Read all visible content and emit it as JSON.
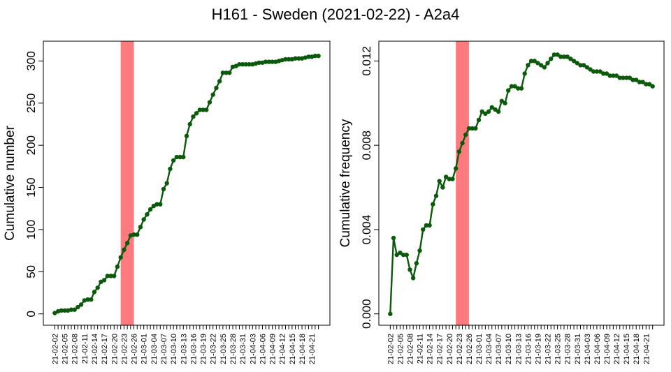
{
  "title": "H161 - Sweden (2021-02-22) - A2a4",
  "colors": {
    "series": "#0b5a0b",
    "highlight": "#ff7a7e",
    "axis": "#000000"
  },
  "chart_data": [
    {
      "type": "line",
      "ylabel": "Cumulative number",
      "xlabel": "",
      "ylim": [
        0,
        310
      ],
      "yticks": [
        "0",
        "50",
        "100",
        "150",
        "200",
        "250",
        "300"
      ],
      "ytick_values": [
        0,
        50,
        100,
        150,
        200,
        250,
        300
      ],
      "highlight": {
        "from": "2021-02-22",
        "to": "2021-02-26"
      },
      "grid": false,
      "legend": "none",
      "x": [
        "2021-02-02",
        "2021-02-03",
        "2021-02-04",
        "2021-02-05",
        "2021-02-06",
        "2021-02-07",
        "2021-02-08",
        "2021-02-09",
        "2021-02-10",
        "2021-02-11",
        "2021-02-12",
        "2021-02-13",
        "2021-02-14",
        "2021-02-15",
        "2021-02-16",
        "2021-02-17",
        "2021-02-18",
        "2021-02-19",
        "2021-02-20",
        "2021-02-21",
        "2021-02-22",
        "2021-02-23",
        "2021-02-24",
        "2021-02-25",
        "2021-02-26",
        "2021-02-27",
        "2021-02-28",
        "2021-03-01",
        "2021-03-02",
        "2021-03-03",
        "2021-03-04",
        "2021-03-05",
        "2021-03-06",
        "2021-03-07",
        "2021-03-08",
        "2021-03-09",
        "2021-03-10",
        "2021-03-11",
        "2021-03-12",
        "2021-03-13",
        "2021-03-14",
        "2021-03-15",
        "2021-03-16",
        "2021-03-17",
        "2021-03-18",
        "2021-03-19",
        "2021-03-20",
        "2021-03-21",
        "2021-03-22",
        "2021-03-23",
        "2021-03-24",
        "2021-03-25",
        "2021-03-26",
        "2021-03-27",
        "2021-03-28",
        "2021-03-29",
        "2021-03-30",
        "2021-03-31",
        "2021-04-01",
        "2021-04-02",
        "2021-04-03",
        "2021-04-04",
        "2021-04-05",
        "2021-04-06",
        "2021-04-07",
        "2021-04-08",
        "2021-04-09",
        "2021-04-10",
        "2021-04-11",
        "2021-04-12",
        "2021-04-13",
        "2021-04-14",
        "2021-04-15",
        "2021-04-16",
        "2021-04-17",
        "2021-04-18",
        "2021-04-19",
        "2021-04-20",
        "2021-04-21",
        "2021-04-22",
        "2021-04-23"
      ],
      "values": [
        1,
        3,
        4,
        4,
        4,
        5,
        5,
        8,
        11,
        16,
        17,
        17,
        26,
        31,
        38,
        40,
        45,
        45,
        45,
        56,
        67,
        76,
        84,
        93,
        94,
        94,
        103,
        112,
        118,
        124,
        128,
        130,
        130,
        148,
        155,
        172,
        182,
        186,
        186,
        186,
        211,
        225,
        234,
        238,
        242,
        242,
        242,
        251,
        260,
        268,
        276,
        286,
        286,
        286,
        293,
        294,
        296,
        296,
        296,
        296,
        296,
        297,
        298,
        298,
        299,
        299,
        299,
        299,
        300,
        301,
        302,
        302,
        302,
        303,
        303,
        303,
        304,
        305,
        305,
        306,
        306
      ]
    },
    {
      "type": "line",
      "ylabel": "Cumulative frequency",
      "xlabel": "",
      "ylim": [
        0,
        0.0124
      ],
      "yticks": [
        "0.000",
        "0.004",
        "0.008",
        "0.012"
      ],
      "ytick_values": [
        0,
        0.004,
        0.008,
        0.012
      ],
      "highlight": {
        "from": "2021-02-22",
        "to": "2021-02-26"
      },
      "grid": false,
      "legend": "none",
      "x": [
        "2021-02-02",
        "2021-02-03",
        "2021-02-04",
        "2021-02-05",
        "2021-02-06",
        "2021-02-07",
        "2021-02-08",
        "2021-02-09",
        "2021-02-10",
        "2021-02-11",
        "2021-02-12",
        "2021-02-13",
        "2021-02-14",
        "2021-02-15",
        "2021-02-16",
        "2021-02-17",
        "2021-02-18",
        "2021-02-19",
        "2021-02-20",
        "2021-02-21",
        "2021-02-22",
        "2021-02-23",
        "2021-02-24",
        "2021-02-25",
        "2021-02-26",
        "2021-02-27",
        "2021-02-28",
        "2021-03-01",
        "2021-03-02",
        "2021-03-03",
        "2021-03-04",
        "2021-03-05",
        "2021-03-06",
        "2021-03-07",
        "2021-03-08",
        "2021-03-09",
        "2021-03-10",
        "2021-03-11",
        "2021-03-12",
        "2021-03-13",
        "2021-03-14",
        "2021-03-15",
        "2021-03-16",
        "2021-03-17",
        "2021-03-18",
        "2021-03-19",
        "2021-03-20",
        "2021-03-21",
        "2021-03-22",
        "2021-03-23",
        "2021-03-24",
        "2021-03-25",
        "2021-03-26",
        "2021-03-27",
        "2021-03-28",
        "2021-03-29",
        "2021-03-30",
        "2021-03-31",
        "2021-04-01",
        "2021-04-02",
        "2021-04-03",
        "2021-04-04",
        "2021-04-05",
        "2021-04-06",
        "2021-04-07",
        "2021-04-08",
        "2021-04-09",
        "2021-04-10",
        "2021-04-11",
        "2021-04-12",
        "2021-04-13",
        "2021-04-14",
        "2021-04-15",
        "2021-04-16",
        "2021-04-17",
        "2021-04-18",
        "2021-04-19",
        "2021-04-20",
        "2021-04-21",
        "2021-04-22",
        "2021-04-23"
      ],
      "values": [
        0,
        0.0036,
        0.0028,
        0.0029,
        0.0028,
        0.0028,
        0.0021,
        0.0017,
        0.0024,
        0.003,
        0.004,
        0.0042,
        0.0042,
        0.0052,
        0.0056,
        0.0063,
        0.006,
        0.0065,
        0.0064,
        0.0064,
        0.0069,
        0.0077,
        0.0081,
        0.0085,
        0.0088,
        0.0088,
        0.0088,
        0.0092,
        0.0096,
        0.0095,
        0.0096,
        0.0098,
        0.0097,
        0.0096,
        0.0101,
        0.01,
        0.0106,
        0.0108,
        0.0108,
        0.0107,
        0.0107,
        0.0114,
        0.0118,
        0.012,
        0.012,
        0.0119,
        0.0118,
        0.0117,
        0.0119,
        0.0121,
        0.0123,
        0.0123,
        0.0122,
        0.0122,
        0.0122,
        0.0121,
        0.012,
        0.0119,
        0.0118,
        0.0118,
        0.0117,
        0.0116,
        0.0115,
        0.0115,
        0.0115,
        0.0114,
        0.0114,
        0.0113,
        0.0113,
        0.0113,
        0.0112,
        0.0112,
        0.0112,
        0.0112,
        0.0111,
        0.0111,
        0.011,
        0.011,
        0.0109,
        0.0109,
        0.0108
      ]
    }
  ],
  "x_tick_labels": [
    "21-02-02",
    "21-02-05",
    "21-02-08",
    "21-02-11",
    "21-02-14",
    "21-02-17",
    "21-02-20",
    "21-02-23",
    "21-02-26",
    "21-03-01",
    "21-03-04",
    "21-03-07",
    "21-03-10",
    "21-03-13",
    "21-03-16",
    "21-03-19",
    "21-03-22",
    "21-03-25",
    "21-03-28",
    "21-03-31",
    "21-04-03",
    "21-04-06",
    "21-04-09",
    "21-04-12",
    "21-04-15",
    "21-04-18",
    "21-04-21"
  ]
}
